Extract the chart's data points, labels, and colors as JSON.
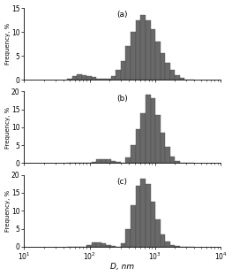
{
  "title_a": "(a)",
  "title_b": "(b)",
  "title_c": "(c)",
  "xlabel": "D, nm",
  "ylabel": "Frequency, %",
  "bar_color": "#696969",
  "bar_edgecolor": "#444444",
  "xlim": [
    10,
    10000
  ],
  "background": "#ffffff",
  "panel_a": {
    "ylim": [
      0,
      15
    ],
    "yticks": [
      0,
      5,
      10,
      15
    ],
    "bin_edges_log10": [
      1.65,
      1.73,
      1.8,
      1.88,
      1.95,
      2.03,
      2.1,
      2.18,
      2.25,
      2.33,
      2.4,
      2.48,
      2.55,
      2.63,
      2.7,
      2.78,
      2.85,
      2.93,
      3.0,
      3.08,
      3.15,
      3.23,
      3.3,
      3.38,
      3.45,
      3.53,
      3.6
    ],
    "values": [
      0.3,
      0.8,
      1.1,
      1.0,
      0.8,
      0.5,
      0.3,
      0.2,
      0.3,
      0.8,
      2.0,
      4.0,
      7.0,
      10.0,
      12.5,
      13.5,
      12.5,
      10.5,
      8.0,
      5.5,
      3.5,
      2.0,
      1.0,
      0.4,
      0.1,
      0.0
    ]
  },
  "panel_b": {
    "ylim": [
      0,
      20
    ],
    "yticks": [
      0,
      5,
      10,
      15,
      20
    ],
    "bin_edges_log10": [
      1.65,
      1.73,
      1.8,
      1.88,
      1.95,
      2.03,
      2.1,
      2.18,
      2.25,
      2.33,
      2.4,
      2.48,
      2.55,
      2.63,
      2.7,
      2.78,
      2.85,
      2.93,
      3.0,
      3.08,
      3.15,
      3.23,
      3.3,
      3.38,
      3.45,
      3.53,
      3.6
    ],
    "values": [
      0.0,
      0.0,
      0.0,
      0.0,
      0.0,
      0.4,
      1.1,
      1.2,
      1.1,
      0.7,
      0.4,
      0.1,
      1.5,
      5.0,
      9.5,
      14.0,
      19.0,
      18.0,
      13.5,
      8.5,
      4.5,
      1.8,
      0.7,
      0.2,
      0.0,
      0.0
    ]
  },
  "panel_c": {
    "ylim": [
      0,
      20
    ],
    "yticks": [
      0,
      5,
      10,
      15,
      20
    ],
    "bin_edges_log10": [
      1.65,
      1.73,
      1.8,
      1.88,
      1.95,
      2.03,
      2.1,
      2.18,
      2.25,
      2.33,
      2.4,
      2.48,
      2.55,
      2.63,
      2.7,
      2.78,
      2.85,
      2.93,
      3.0,
      3.08,
      3.15,
      3.23,
      3.3,
      3.38,
      3.45,
      3.53,
      3.6
    ],
    "values": [
      0.0,
      0.0,
      0.0,
      0.0,
      0.4,
      1.1,
      1.2,
      1.0,
      0.5,
      0.1,
      0.0,
      1.0,
      5.0,
      11.5,
      17.0,
      19.0,
      17.5,
      12.5,
      7.5,
      3.5,
      1.5,
      0.5,
      0.1,
      0.0,
      0.0,
      0.0
    ]
  }
}
